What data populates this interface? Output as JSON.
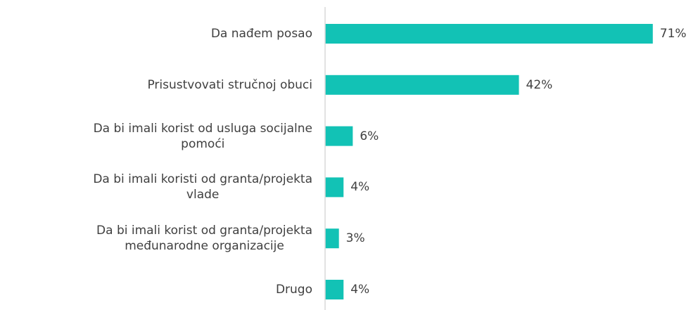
{
  "chart_data": {
    "type": "bar",
    "orientation": "horizontal",
    "categories": [
      "Da nađem posao",
      "Prisustvovati stručnoj obuci",
      "Da bi imali korist od usluga socijalne\npomoći",
      "Da bi imali koristi od granta/projekta\nvlade",
      "Da bi imali korist od granta/projekta\nmeđunarodne organizacije",
      "Drugo"
    ],
    "values": [
      71,
      42,
      6,
      4,
      3,
      4
    ],
    "value_labels": [
      "71%",
      "42%",
      "6%",
      "4%",
      "3%",
      "4%"
    ],
    "color": "#12c2b5",
    "xlim": [
      0,
      75
    ]
  }
}
